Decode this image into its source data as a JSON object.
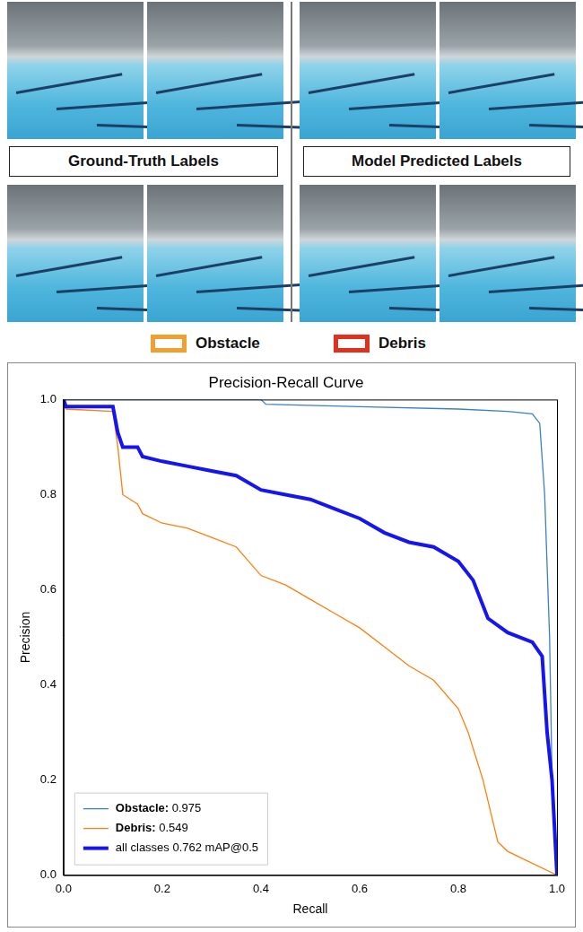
{
  "figure": {
    "left_panel_title": "Ground-Truth Labels",
    "right_panel_title": "Model Predicted Labels",
    "box_legend": [
      {
        "label": "Obstacle",
        "color": "#f0a030"
      },
      {
        "label": "Debris",
        "color": "#e0301e"
      }
    ]
  },
  "chart_data": {
    "type": "line",
    "title": "Precision-Recall Curve",
    "x_label": "Recall",
    "y_label": "Precision",
    "xlim": [
      0,
      1
    ],
    "ylim": [
      0,
      1
    ],
    "xticks": [
      {
        "value": 0,
        "label": "0.0"
      },
      {
        "value": 0.2,
        "label": "0.2"
      },
      {
        "value": 0.4,
        "label": "0.4"
      },
      {
        "value": 0.6,
        "label": "0.6"
      },
      {
        "value": 0.8,
        "label": "0.8"
      },
      {
        "value": 1,
        "label": "1.0"
      }
    ],
    "yticks": [
      {
        "value": 0,
        "label": "0.0"
      },
      {
        "value": 0.2,
        "label": "0.2"
      },
      {
        "value": 0.4,
        "label": "0.4"
      },
      {
        "value": 0.6,
        "label": "0.6"
      },
      {
        "value": 0.8,
        "label": "0.8"
      },
      {
        "value": 1,
        "label": "1.0"
      }
    ],
    "grid": false,
    "legend": "lower left",
    "series": [
      {
        "name": "Obstacle: 0.975",
        "color": "#3c7fc4",
        "x": [
          0,
          0.4,
          0.41,
          0.6,
          0.8,
          0.9,
          0.95,
          0.965,
          0.975,
          0.985,
          0.99,
          1.0
        ],
        "values": [
          1.0,
          1.0,
          0.99,
          0.985,
          0.98,
          0.975,
          0.97,
          0.95,
          0.8,
          0.5,
          0.2,
          0.0
        ]
      },
      {
        "name": "Debris: 0.549",
        "color": "#ff7f0e",
        "x": [
          0,
          0.005,
          0.1,
          0.11,
          0.12,
          0.15,
          0.16,
          0.2,
          0.25,
          0.3,
          0.35,
          0.4,
          0.45,
          0.5,
          0.55,
          0.6,
          0.65,
          0.7,
          0.75,
          0.8,
          0.82,
          0.85,
          0.88,
          0.9,
          1.0
        ],
        "values": [
          1.0,
          0.98,
          0.975,
          0.9,
          0.8,
          0.78,
          0.76,
          0.74,
          0.73,
          0.71,
          0.69,
          0.63,
          0.61,
          0.58,
          0.55,
          0.52,
          0.48,
          0.44,
          0.41,
          0.35,
          0.3,
          0.2,
          0.07,
          0.05,
          0.0
        ]
      },
      {
        "name": "all classes 0.762 mAP@0.5",
        "color": "#1515f0",
        "x": [
          0,
          0.005,
          0.1,
          0.11,
          0.12,
          0.15,
          0.16,
          0.2,
          0.25,
          0.3,
          0.35,
          0.4,
          0.45,
          0.5,
          0.55,
          0.6,
          0.65,
          0.7,
          0.75,
          0.8,
          0.83,
          0.86,
          0.9,
          0.95,
          0.97,
          0.98,
          0.99,
          1.0
        ],
        "values": [
          1.0,
          0.985,
          0.985,
          0.93,
          0.9,
          0.9,
          0.88,
          0.87,
          0.86,
          0.85,
          0.84,
          0.81,
          0.8,
          0.79,
          0.77,
          0.75,
          0.72,
          0.7,
          0.69,
          0.66,
          0.62,
          0.54,
          0.51,
          0.49,
          0.46,
          0.3,
          0.2,
          0.0
        ]
      }
    ]
  }
}
